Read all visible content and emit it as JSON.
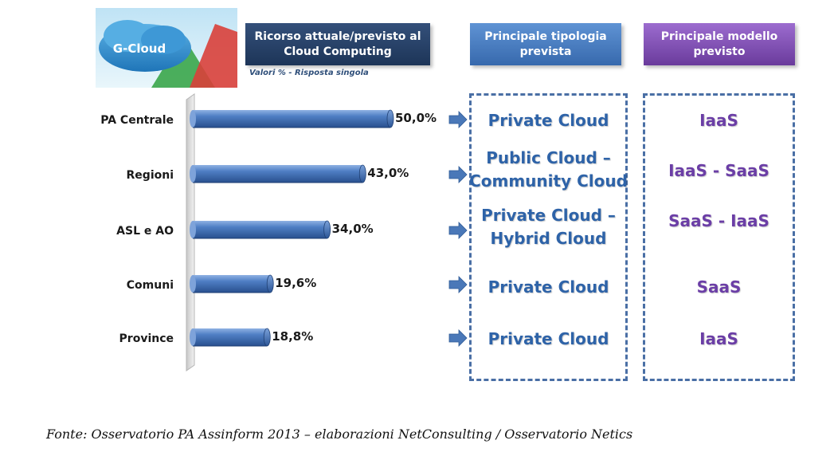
{
  "logo": {
    "text": "G-Cloud"
  },
  "headers": {
    "resource": "Ricorso attuale/previsto al Cloud Computing",
    "typology": "Principale tipologia prevista",
    "model": "Principale modello previsto"
  },
  "note": "Valori % - Risposta singola",
  "chart_data": {
    "type": "bar",
    "orientation": "horizontal",
    "categories": [
      "PA Centrale",
      "Regioni",
      "ASL e AO",
      "Comuni",
      "Province"
    ],
    "values": [
      50.0,
      43.0,
      34.0,
      19.6,
      18.8
    ],
    "value_labels": [
      "50,0%",
      "43,0%",
      "34,0%",
      "19,6%",
      "18,8%"
    ],
    "xlim": [
      0,
      50
    ],
    "grid": false,
    "color": "#3f6fb8"
  },
  "rows": [
    {
      "typology": "Private Cloud",
      "model": "IaaS"
    },
    {
      "typology": "Public Cloud – Community Cloud",
      "model": "IaaS - SaaS"
    },
    {
      "typology": "Private Cloud – Hybrid Cloud",
      "model": "SaaS - IaaS"
    },
    {
      "typology": "Private Cloud",
      "model": "SaaS"
    },
    {
      "typology": "Private Cloud",
      "model": "IaaS"
    }
  ],
  "source": "Fonte: Osservatorio PA Assinform 2013 – elaborazioni NetConsulting / Osservatorio Netics",
  "colors": {
    "bar": "#3f6fb8",
    "arrow": "#4a78b8",
    "typology_text": "#2e63a8",
    "model_text": "#6b3ea6"
  }
}
